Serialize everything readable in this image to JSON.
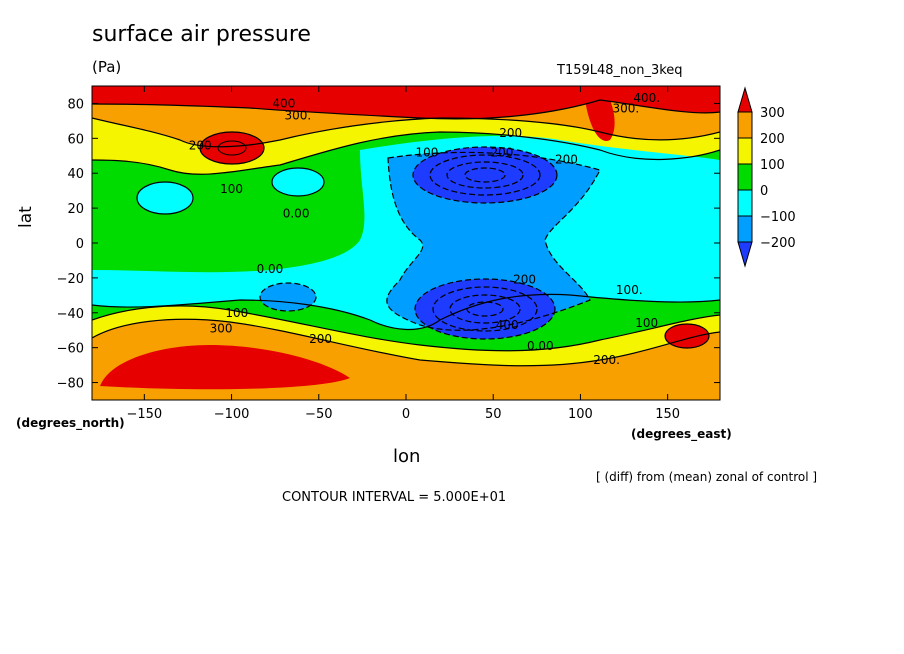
{
  "chart_data": {
    "type": "heatmap",
    "title": "surface air pressure",
    "units": "(Pa)",
    "run_label": "T159L48_non_3keq",
    "xlabel": "lon",
    "xlabel_units": "(degrees_east)",
    "ylabel": "lat",
    "ylabel_units": "(degrees_north)",
    "xlim": [
      -180,
      180
    ],
    "ylim": [
      -90,
      90
    ],
    "x_ticks": [
      -150,
      -100,
      -50,
      0,
      50,
      100,
      150
    ],
    "y_ticks": [
      80,
      60,
      40,
      20,
      0,
      -20,
      -40,
      -60,
      -80
    ],
    "colorbar": {
      "levels": [
        300,
        200,
        100,
        0,
        -100,
        -200
      ],
      "labels": [
        "300",
        "200",
        "100",
        "0",
        "−100",
        "−200"
      ],
      "colors": {
        "above_300": "#e60000",
        "200_300": "#f7a000",
        "100_200": "#f5f500",
        "0_100": "#00dc00",
        "-100_0": "#00ffff",
        "-200_-100": "#009fff",
        "below_-200": "#1e3cff"
      }
    },
    "contour_interval": 50,
    "contour_labels": [
      {
        "text": "400",
        "lon": -70,
        "lat": 80
      },
      {
        "text": "300.",
        "lon": -62,
        "lat": 73
      },
      {
        "text": "400.",
        "lon": 138,
        "lat": 83
      },
      {
        "text": "300.",
        "lon": 126,
        "lat": 77
      },
      {
        "text": "200",
        "lon": 60,
        "lat": 63
      },
      {
        "text": "200",
        "lon": -118,
        "lat": 56
      },
      {
        "text": "100",
        "lon": 12,
        "lat": 52
      },
      {
        "text": "200",
        "lon": 55,
        "lat": 52
      },
      {
        "text": "200",
        "lon": 92,
        "lat": 48
      },
      {
        "text": "100",
        "lon": -100,
        "lat": 31
      },
      {
        "text": "0.00",
        "lon": -63,
        "lat": 17
      },
      {
        "text": "0.00",
        "lon": -78,
        "lat": -15
      },
      {
        "text": "200",
        "lon": 68,
        "lat": -21
      },
      {
        "text": "100.",
        "lon": 128,
        "lat": -27
      },
      {
        "text": "100",
        "lon": -97,
        "lat": -40
      },
      {
        "text": "300",
        "lon": -106,
        "lat": -49
      },
      {
        "text": "200",
        "lon": -49,
        "lat": -55
      },
      {
        "text": "400",
        "lon": 58,
        "lat": -47
      },
      {
        "text": "100",
        "lon": 138,
        "lat": -46
      },
      {
        "text": "0.00",
        "lon": 77,
        "lat": -59
      },
      {
        "text": "200.",
        "lon": 115,
        "lat": -67
      }
    ]
  },
  "footer": {
    "note": "[ (diff) from (mean) zonal of control ]",
    "contour_interval_text": "CONTOUR INTERVAL = 5.000E+01"
  }
}
